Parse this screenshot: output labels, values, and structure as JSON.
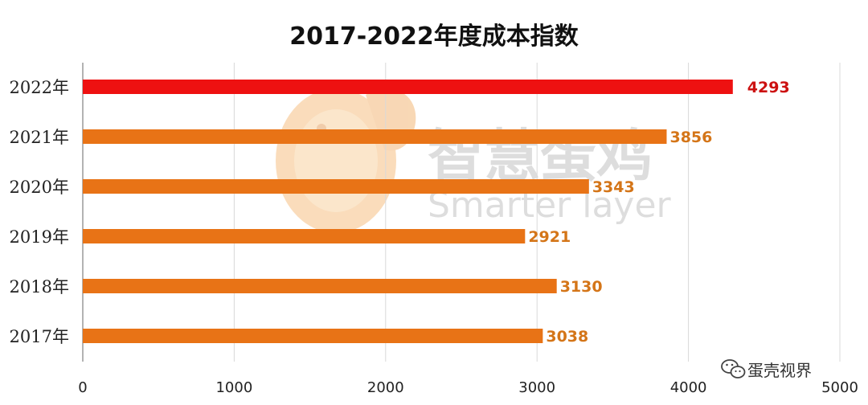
{
  "chart_data": {
    "type": "bar",
    "orientation": "horizontal",
    "title": "2017-2022年度成本指数",
    "categories": [
      "2022年",
      "2021年",
      "2020年",
      "2019年",
      "2018年",
      "2017年"
    ],
    "values": [
      4293,
      3856,
      3343,
      2921,
      3130,
      3038
    ],
    "xlim": [
      0,
      5000
    ],
    "xticks": [
      0,
      1000,
      2000,
      3000,
      4000,
      5000
    ],
    "grid": true,
    "legend": "none",
    "colors": {
      "highlight_bar": "#ee1111",
      "highlight_label": "#cc1111",
      "bar": "#e87316",
      "label": "#d47518",
      "grid": "#d9d9d9",
      "axis": "#9a9a9a"
    },
    "highlight_index": 0
  },
  "watermark": {
    "logo": "egg-chick-logo",
    "brand_cn": "智慧蛋鸡",
    "brand_en": "Smarter layer"
  },
  "credit": {
    "icon": "wechat-icon",
    "text": "蛋壳视界"
  }
}
